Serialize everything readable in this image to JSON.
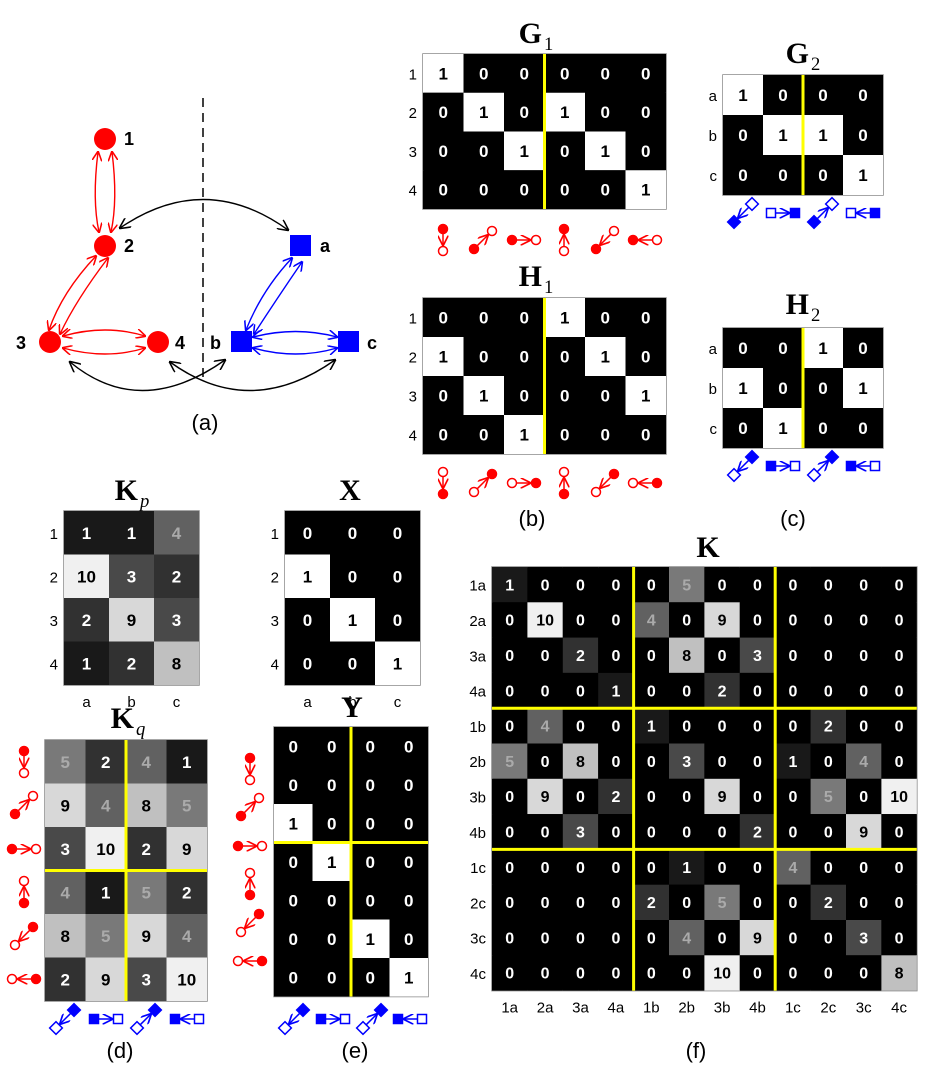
{
  "graph": {
    "caption": "(a)",
    "nodes_left": [
      "1",
      "2",
      "3",
      "4"
    ],
    "nodes_right": [
      "a",
      "b",
      "c"
    ],
    "red": "#ff0000",
    "blue": "#0000ff"
  },
  "panels": {
    "b": "(b)",
    "c": "(c)",
    "d": "(d)",
    "e": "(e)",
    "f": "(f)"
  },
  "matrices": {
    "G1": {
      "title": "G",
      "sub": "1",
      "rows": [
        "1",
        "2",
        "3",
        "4"
      ],
      "values": [
        [
          1,
          0,
          0,
          0,
          0,
          0
        ],
        [
          0,
          1,
          0,
          1,
          0,
          0
        ],
        [
          0,
          0,
          1,
          0,
          1,
          0
        ],
        [
          0,
          0,
          0,
          0,
          0,
          1
        ]
      ]
    },
    "H1": {
      "title": "H",
      "sub": "1",
      "rows": [
        "1",
        "2",
        "3",
        "4"
      ],
      "values": [
        [
          0,
          0,
          0,
          1,
          0,
          0
        ],
        [
          1,
          0,
          0,
          0,
          1,
          0
        ],
        [
          0,
          1,
          0,
          0,
          0,
          1
        ],
        [
          0,
          0,
          1,
          0,
          0,
          0
        ]
      ]
    },
    "G2": {
      "title": "G",
      "sub": "2",
      "rows": [
        "a",
        "b",
        "c"
      ],
      "values": [
        [
          1,
          0,
          0,
          0
        ],
        [
          0,
          1,
          1,
          0
        ],
        [
          0,
          0,
          0,
          1
        ]
      ]
    },
    "H2": {
      "title": "H",
      "sub": "2",
      "rows": [
        "a",
        "b",
        "c"
      ],
      "values": [
        [
          0,
          0,
          1,
          0
        ],
        [
          1,
          0,
          0,
          1
        ],
        [
          0,
          1,
          0,
          0
        ]
      ]
    },
    "Kp": {
      "title": "K",
      "sub": "p",
      "rows": [
        "1",
        "2",
        "3",
        "4"
      ],
      "cols": [
        "a",
        "b",
        "c"
      ],
      "values": [
        [
          1,
          1,
          4
        ],
        [
          10,
          3,
          2
        ],
        [
          2,
          9,
          3
        ],
        [
          1,
          2,
          8
        ]
      ]
    },
    "X": {
      "title": "X",
      "rows": [
        "1",
        "2",
        "3",
        "4"
      ],
      "cols": [
        "a",
        "b",
        "c"
      ],
      "values": [
        [
          0,
          0,
          0
        ],
        [
          1,
          0,
          0
        ],
        [
          0,
          1,
          0
        ],
        [
          0,
          0,
          1
        ]
      ]
    },
    "Kq": {
      "title": "K",
      "sub": "q",
      "values": [
        [
          5,
          2,
          4,
          1
        ],
        [
          9,
          4,
          8,
          5
        ],
        [
          3,
          10,
          2,
          9
        ],
        [
          4,
          1,
          5,
          2
        ],
        [
          8,
          5,
          9,
          4
        ],
        [
          2,
          9,
          3,
          10
        ]
      ]
    },
    "Y": {
      "title": "Y",
      "values": [
        [
          0,
          0,
          0,
          0
        ],
        [
          0,
          0,
          0,
          0
        ],
        [
          1,
          0,
          0,
          0
        ],
        [
          0,
          1,
          0,
          0
        ],
        [
          0,
          0,
          0,
          0
        ],
        [
          0,
          0,
          1,
          0
        ],
        [
          0,
          0,
          0,
          1
        ]
      ]
    },
    "K": {
      "title": "K",
      "rows": [
        "1a",
        "2a",
        "3a",
        "4a",
        "1b",
        "2b",
        "3b",
        "4b",
        "1c",
        "2c",
        "3c",
        "4c"
      ],
      "cols": [
        "1a",
        "2a",
        "3a",
        "4a",
        "1b",
        "2b",
        "3b",
        "4b",
        "1c",
        "2c",
        "3c",
        "4c"
      ],
      "values": [
        [
          1,
          0,
          0,
          0,
          0,
          5,
          0,
          0,
          0,
          0,
          0,
          0
        ],
        [
          0,
          10,
          0,
          0,
          4,
          0,
          9,
          0,
          0,
          0,
          0,
          0
        ],
        [
          0,
          0,
          2,
          0,
          0,
          8,
          0,
          3,
          0,
          0,
          0,
          0
        ],
        [
          0,
          0,
          0,
          1,
          0,
          0,
          2,
          0,
          0,
          0,
          0,
          0
        ],
        [
          0,
          4,
          0,
          0,
          1,
          0,
          0,
          0,
          0,
          2,
          0,
          0
        ],
        [
          5,
          0,
          8,
          0,
          0,
          3,
          0,
          0,
          1,
          0,
          4,
          0
        ],
        [
          0,
          9,
          0,
          2,
          0,
          0,
          9,
          0,
          0,
          5,
          0,
          10
        ],
        [
          0,
          0,
          3,
          0,
          0,
          0,
          0,
          2,
          0,
          0,
          9,
          0
        ],
        [
          0,
          0,
          0,
          0,
          0,
          1,
          0,
          0,
          4,
          0,
          0,
          0
        ],
        [
          0,
          0,
          0,
          0,
          2,
          0,
          5,
          0,
          0,
          2,
          0,
          0
        ],
        [
          0,
          0,
          0,
          0,
          0,
          4,
          0,
          9,
          0,
          0,
          3,
          0
        ],
        [
          0,
          0,
          0,
          0,
          0,
          0,
          10,
          0,
          0,
          0,
          0,
          8
        ]
      ]
    }
  }
}
